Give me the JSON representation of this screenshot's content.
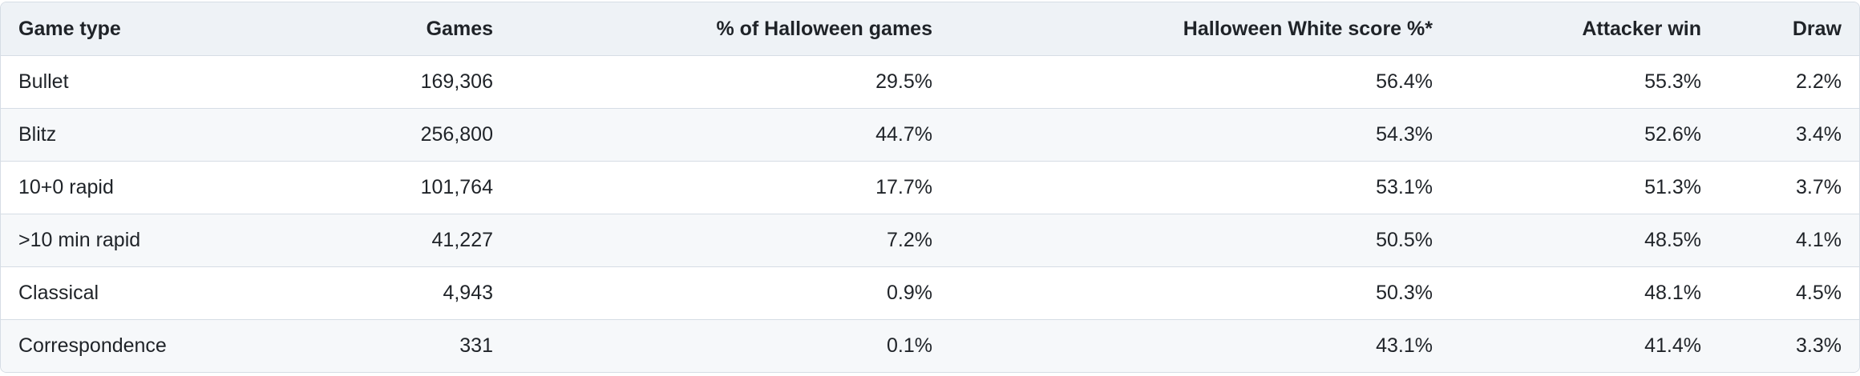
{
  "table": {
    "header": [
      "Game type",
      "Games",
      "% of Halloween games",
      "Halloween White score %*",
      "Attacker win",
      "Draw"
    ],
    "rows": [
      [
        "Bullet",
        "169,306",
        "29.5%",
        "56.4%",
        "55.3%",
        "2.2%"
      ],
      [
        "Blitz",
        "256,800",
        "44.7%",
        "54.3%",
        "52.6%",
        "3.4%"
      ],
      [
        "10+0 rapid",
        "101,764",
        "17.7%",
        "53.1%",
        "51.3%",
        "3.7%"
      ],
      [
        ">10 min rapid",
        "41,227",
        "7.2%",
        "50.5%",
        "48.5%",
        "4.1%"
      ],
      [
        "Classical",
        "4,943",
        "0.9%",
        "50.3%",
        "48.1%",
        "4.5%"
      ],
      [
        "Correspondence",
        "331",
        "0.1%",
        "43.1%",
        "41.4%",
        "3.3%"
      ]
    ]
  }
}
